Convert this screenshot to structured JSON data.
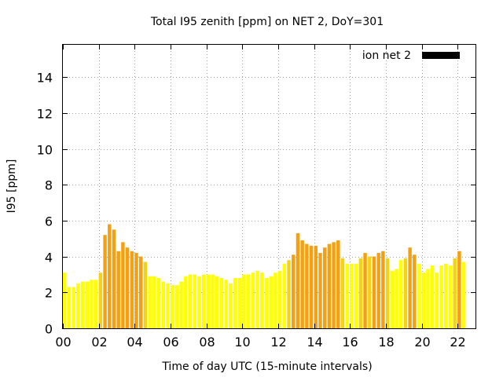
{
  "chart_data": {
    "type": "bar",
    "title": "Total I95 zenith [ppm] on NET 2, DoY=301",
    "xlabel": "Time of day UTC (15-minute intervals)",
    "ylabel": "I95 [ppm]",
    "xlim": [
      0,
      23
    ],
    "ylim": [
      0,
      15.8
    ],
    "xticks": [
      0,
      2,
      4,
      6,
      8,
      10,
      12,
      14,
      16,
      18,
      20,
      22
    ],
    "xtick_labels": [
      "00",
      "02",
      "04",
      "06",
      "08",
      "10",
      "12",
      "14",
      "16",
      "18",
      "20",
      "22"
    ],
    "yticks": [
      0,
      2,
      4,
      6,
      8,
      10,
      12,
      14
    ],
    "ytick_labels": [
      "0",
      "2",
      "4",
      "6",
      "8",
      "10",
      "12",
      "14"
    ],
    "bar_step_hours": 0.25,
    "legend": {
      "label": "ion net 2",
      "color": "#000000",
      "position": "top-right"
    },
    "colors": {
      "yellow": "#ffff00",
      "gold": "#f4d214",
      "orange": "#f5a010"
    },
    "values": [
      3.1,
      2.3,
      2.3,
      2.5,
      2.6,
      2.6,
      2.7,
      2.7,
      3.1,
      5.2,
      5.8,
      5.5,
      4.3,
      4.8,
      4.5,
      4.3,
      4.2,
      4.0,
      3.7,
      2.9,
      2.9,
      2.8,
      2.6,
      2.5,
      2.4,
      2.4,
      2.6,
      2.9,
      3.0,
      3.0,
      2.9,
      3.0,
      3.0,
      3.0,
      2.9,
      2.8,
      2.7,
      2.5,
      2.8,
      2.8,
      3.0,
      3.0,
      3.1,
      3.2,
      3.1,
      2.8,
      2.9,
      3.1,
      3.2,
      3.6,
      3.8,
      4.1,
      5.3,
      4.9,
      4.7,
      4.6,
      4.6,
      4.2,
      4.5,
      4.7,
      4.8,
      4.9,
      3.9,
      3.6,
      3.6,
      3.6,
      3.9,
      4.2,
      4.0,
      4.0,
      4.2,
      4.3,
      3.9,
      3.2,
      3.3,
      3.8,
      3.9,
      4.5,
      4.1,
      3.6,
      3.1,
      3.3,
      3.5,
      3.1,
      3.5,
      3.6,
      3.5,
      3.9,
      4.3,
      3.7
    ],
    "bar_colors": [
      "yellow",
      "yellow",
      "yellow",
      "yellow",
      "yellow",
      "yellow",
      "yellow",
      "yellow",
      "gold",
      "orange",
      "orange",
      "orange",
      "orange",
      "orange",
      "orange",
      "orange",
      "orange",
      "orange",
      "gold",
      "yellow",
      "yellow",
      "yellow",
      "yellow",
      "yellow",
      "yellow",
      "yellow",
      "yellow",
      "yellow",
      "yellow",
      "yellow",
      "yellow",
      "yellow",
      "yellow",
      "yellow",
      "yellow",
      "yellow",
      "yellow",
      "yellow",
      "yellow",
      "yellow",
      "yellow",
      "yellow",
      "yellow",
      "yellow",
      "yellow",
      "yellow",
      "yellow",
      "yellow",
      "yellow",
      "yellow",
      "gold",
      "orange",
      "orange",
      "orange",
      "orange",
      "orange",
      "orange",
      "orange",
      "orange",
      "orange",
      "orange",
      "orange",
      "gold",
      "yellow",
      "yellow",
      "yellow",
      "gold",
      "orange",
      "gold",
      "orange",
      "orange",
      "orange",
      "gold",
      "yellow",
      "yellow",
      "yellow",
      "gold",
      "orange",
      "orange",
      "yellow",
      "yellow",
      "yellow",
      "yellow",
      "yellow",
      "yellow",
      "yellow",
      "yellow",
      "gold",
      "orange",
      "yellow"
    ]
  }
}
